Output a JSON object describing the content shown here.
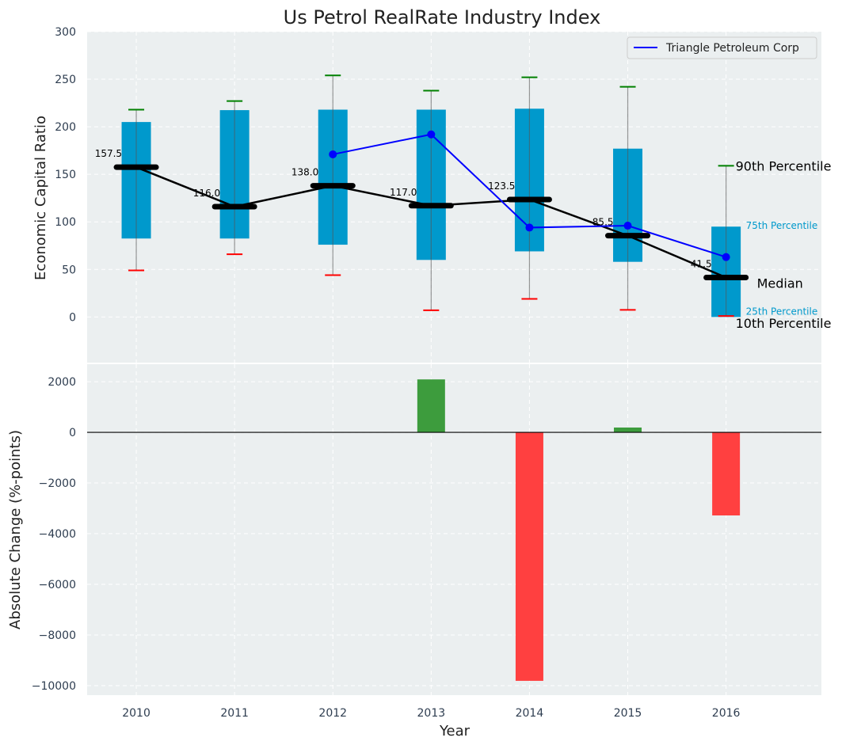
{
  "chart_data": [
    {
      "type": "box",
      "title": "Us Petrol RealRate Industry Index",
      "xlabel": "",
      "ylabel": "Economic Capital Ratio",
      "ylim": [
        -48,
        300
      ],
      "yticks": [
        0,
        50,
        100,
        150,
        200,
        250,
        300
      ],
      "grid": true,
      "categories": [
        "2010",
        "2011",
        "2012",
        "2013",
        "2014",
        "2015",
        "2016"
      ],
      "p10": [
        49,
        66,
        44,
        7,
        19,
        7.5,
        1
      ],
      "p25": [
        82.5,
        82.5,
        76,
        60,
        69,
        58,
        0
      ],
      "median": [
        157.5,
        116.0,
        138.0,
        117.0,
        123.5,
        85.5,
        41.5
      ],
      "median_labels": [
        "157.5",
        "116.0",
        "138.0",
        "117.0",
        "123.5",
        "85.5",
        "41.5"
      ],
      "p75": [
        205,
        217.5,
        218,
        218,
        219,
        177,
        95
      ],
      "p90": [
        218,
        227,
        254,
        238,
        252,
        242,
        159
      ],
      "series": [
        {
          "name": "Triangle Petroleum Corp",
          "values": [
            null,
            null,
            171,
            192,
            94,
            96,
            63
          ],
          "color": "#0000ff"
        }
      ],
      "legend": {
        "placement": "top-right",
        "entries": [
          "Triangle Petroleum Corp"
        ]
      },
      "annotations": {
        "p90": "90th Percentile",
        "p75": "75th Percentile",
        "median": "Median",
        "p25": "25th Percentile",
        "p10": "10th Percentile"
      },
      "colors": {
        "box": "#0099cc",
        "median": "#000000",
        "p90_cap": "#008000",
        "p10_cap": "#ff0000",
        "background": "#ebeff0"
      }
    },
    {
      "type": "bar",
      "title": "",
      "xlabel": "Year",
      "ylabel": "Absolute Change (%-points)",
      "ylim": [
        -10375,
        2690
      ],
      "yticks": [
        -10000,
        -8000,
        -6000,
        -4000,
        -2000,
        0,
        2000
      ],
      "ytick_labels": [
        "−10000",
        "−8000",
        "−6000",
        "−4000",
        "−2000",
        "0",
        "2000"
      ],
      "categories": [
        "2010",
        "2011",
        "2012",
        "2013",
        "2014",
        "2015",
        "2016"
      ],
      "values": [
        0,
        0,
        0,
        2090,
        -9810,
        190,
        -3280
      ],
      "grid": true,
      "colors": {
        "positive": "#3d9c3d",
        "negative": "#ff4040"
      }
    }
  ]
}
